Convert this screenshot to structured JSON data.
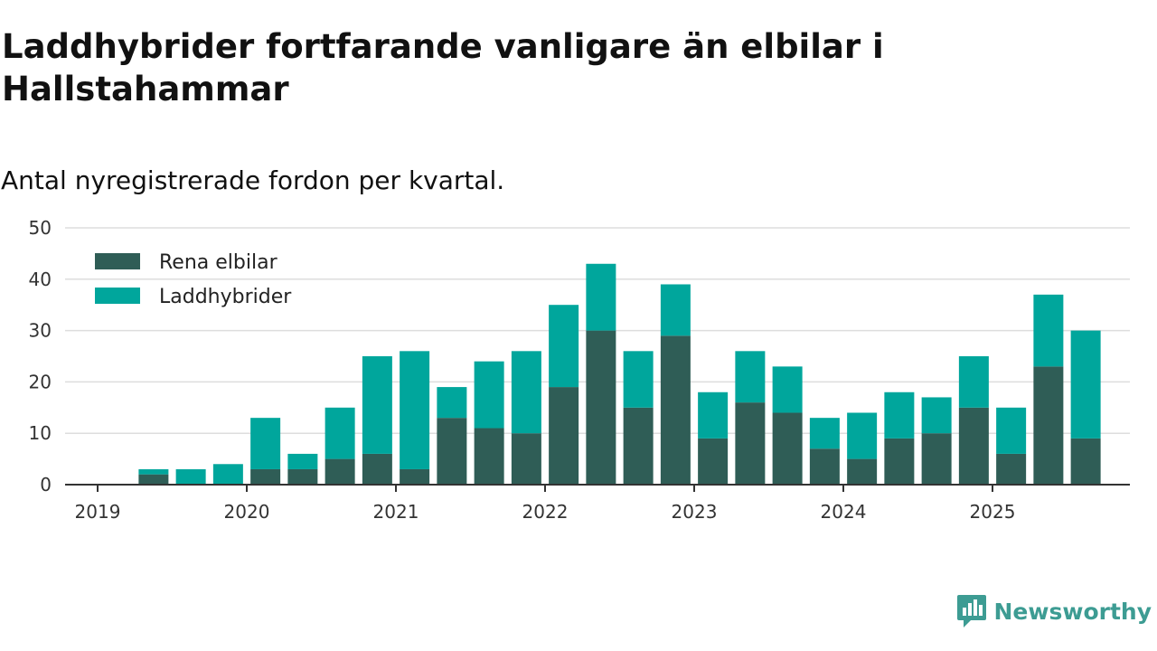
{
  "header": {
    "title": "Laddhybrider fortfarande vanligare än elbilar i Hallstahammar",
    "subtitle": "Antal nyregistrerade fordon per kvartal."
  },
  "brand": {
    "name": "Newsworthy",
    "icon": "newsworthy-logo-icon",
    "color": "#3d9c93"
  },
  "chart_data": {
    "type": "bar",
    "stacked": true,
    "title": "Laddhybrider fortfarande vanligare än elbilar i Hallstahammar",
    "subtitle": "Antal nyregistrerade fordon per kvartal.",
    "xlabel": "",
    "ylabel": "",
    "ylim": [
      0,
      50
    ],
    "yticks": [
      0,
      10,
      20,
      30,
      40,
      50
    ],
    "xticks": [
      "2019",
      "2020",
      "2021",
      "2022",
      "2023",
      "2024",
      "2025"
    ],
    "x_range_quarters": [
      2019.0,
      2025.85
    ],
    "grid": true,
    "legend_position": "top-left",
    "categories": [
      "2019 Q2",
      "2019 Q3",
      "2019 Q4",
      "2020 Q1",
      "2020 Q2",
      "2020 Q3",
      "2020 Q4",
      "2021 Q1",
      "2021 Q2",
      "2021 Q3",
      "2021 Q4",
      "2022 Q1",
      "2022 Q2",
      "2022 Q3",
      "2022 Q4",
      "2023 Q1",
      "2023 Q2",
      "2023 Q3",
      "2023 Q4",
      "2024 Q1",
      "2024 Q2",
      "2024 Q3",
      "2024 Q4",
      "2025 Q1",
      "2025 Q2",
      "2025 Q3"
    ],
    "series": [
      {
        "name": "Rena elbilar",
        "color": "#2f5d56",
        "values": [
          2,
          0,
          0,
          3,
          3,
          5,
          6,
          3,
          13,
          11,
          10,
          19,
          30,
          15,
          29,
          9,
          16,
          14,
          7,
          5,
          9,
          10,
          15,
          6,
          23,
          9
        ]
      },
      {
        "name": "Laddhybrider",
        "color": "#00a69c",
        "values": [
          1,
          3,
          4,
          10,
          3,
          10,
          19,
          23,
          6,
          13,
          16,
          16,
          13,
          11,
          10,
          9,
          10,
          9,
          6,
          9,
          9,
          7,
          10,
          9,
          14,
          21
        ]
      }
    ]
  }
}
